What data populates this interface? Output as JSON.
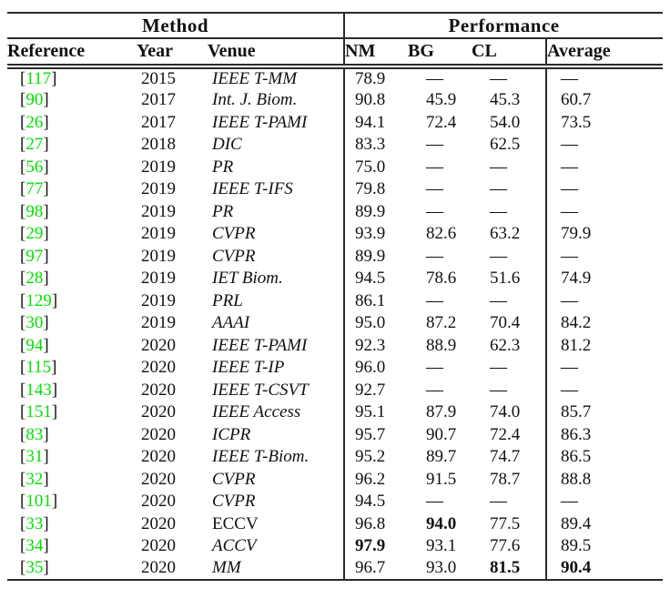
{
  "colors": {
    "citation_green": "#00e000",
    "rule_color": "#2a2a2a",
    "text_color": "#111111"
  },
  "table": {
    "group_headers": [
      {
        "label": "Method"
      },
      {
        "label": "Performance"
      }
    ],
    "columns": [
      {
        "label": "Reference"
      },
      {
        "label": "Year"
      },
      {
        "label": "Venue"
      },
      {
        "label": "NM"
      },
      {
        "label": "BG"
      },
      {
        "label": "CL"
      },
      {
        "label": "Average"
      }
    ],
    "ref_open": "[",
    "ref_close": "]",
    "dash": "—",
    "rows": [
      {
        "ref": "117",
        "year": "2015",
        "venue": "IEEE T-MM",
        "venue_italic": true,
        "nm": "78.9",
        "bg": "—",
        "cl": "—",
        "avg": "—",
        "bold": []
      },
      {
        "ref": "90",
        "year": "2017",
        "venue": "Int. J. Biom.",
        "venue_italic": true,
        "nm": "90.8",
        "bg": "45.9",
        "cl": "45.3",
        "avg": "60.7",
        "bold": []
      },
      {
        "ref": "26",
        "year": "2017",
        "venue": "IEEE T-PAMI",
        "venue_italic": true,
        "nm": "94.1",
        "bg": "72.4",
        "cl": "54.0",
        "avg": "73.5",
        "bold": []
      },
      {
        "ref": "27",
        "year": "2018",
        "venue": "DIC",
        "venue_italic": true,
        "nm": "83.3",
        "bg": "—",
        "cl": "62.5",
        "avg": "—",
        "bold": []
      },
      {
        "ref": "56",
        "year": "2019",
        "venue": "PR",
        "venue_italic": true,
        "nm": "75.0",
        "bg": "—",
        "cl": "—",
        "avg": "—",
        "bold": []
      },
      {
        "ref": "77",
        "year": "2019",
        "venue": "IEEE T-IFS",
        "venue_italic": true,
        "nm": "79.8",
        "bg": "—",
        "cl": "—",
        "avg": "—",
        "bold": []
      },
      {
        "ref": "98",
        "year": "2019",
        "venue": "PR",
        "venue_italic": true,
        "nm": "89.9",
        "bg": "—",
        "cl": "—",
        "avg": "—",
        "bold": []
      },
      {
        "ref": "29",
        "year": "2019",
        "venue": "CVPR",
        "venue_italic": true,
        "nm": "93.9",
        "bg": "82.6",
        "cl": "63.2",
        "avg": "79.9",
        "bold": []
      },
      {
        "ref": "97",
        "year": "2019",
        "venue": "CVPR",
        "venue_italic": true,
        "nm": "89.9",
        "bg": "—",
        "cl": "—",
        "avg": "—",
        "bold": []
      },
      {
        "ref": "28",
        "year": "2019",
        "venue": "IET Biom.",
        "venue_italic": true,
        "nm": "94.5",
        "bg": "78.6",
        "cl": "51.6",
        "avg": "74.9",
        "bold": []
      },
      {
        "ref": "129",
        "year": "2019",
        "venue": "PRL",
        "venue_italic": true,
        "nm": "86.1",
        "bg": "—",
        "cl": "—",
        "avg": "—",
        "bold": []
      },
      {
        "ref": "30",
        "year": "2019",
        "venue": "AAAI",
        "venue_italic": true,
        "nm": "95.0",
        "bg": "87.2",
        "cl": "70.4",
        "avg": "84.2",
        "bold": []
      },
      {
        "ref": "94",
        "year": "2020",
        "venue": "IEEE T-PAMI",
        "venue_italic": true,
        "nm": "92.3",
        "bg": "88.9",
        "cl": "62.3",
        "avg": "81.2",
        "bold": []
      },
      {
        "ref": "115",
        "year": "2020",
        "venue": "IEEE T-IP",
        "venue_italic": true,
        "nm": "96.0",
        "bg": "—",
        "cl": "—",
        "avg": "—",
        "bold": []
      },
      {
        "ref": "143",
        "year": "2020",
        "venue": "IEEE T-CSVT",
        "venue_italic": true,
        "nm": "92.7",
        "bg": "—",
        "cl": "—",
        "avg": "—",
        "bold": []
      },
      {
        "ref": "151",
        "year": "2020",
        "venue": "IEEE Access",
        "venue_italic": true,
        "nm": "95.1",
        "bg": "87.9",
        "cl": "74.0",
        "avg": "85.7",
        "bold": []
      },
      {
        "ref": "83",
        "year": "2020",
        "venue": "ICPR",
        "venue_italic": true,
        "nm": "95.7",
        "bg": "90.7",
        "cl": "72.4",
        "avg": "86.3",
        "bold": []
      },
      {
        "ref": "31",
        "year": "2020",
        "venue": "IEEE T-Biom.",
        "venue_italic": true,
        "nm": "95.2",
        "bg": "89.7",
        "cl": "74.7",
        "avg": "86.5",
        "bold": []
      },
      {
        "ref": "32",
        "year": "2020",
        "venue": "CVPR",
        "venue_italic": true,
        "nm": "96.2",
        "bg": "91.5",
        "cl": "78.7",
        "avg": "88.8",
        "bold": []
      },
      {
        "ref": "101",
        "year": "2020",
        "venue": "CVPR",
        "venue_italic": true,
        "nm": "94.5",
        "bg": "—",
        "cl": "—",
        "avg": "—",
        "bold": []
      },
      {
        "ref": "33",
        "year": "2020",
        "venue": "ECCV",
        "venue_italic": false,
        "nm": "96.8",
        "bg": "94.0",
        "cl": "77.5",
        "avg": "89.4",
        "bold": [
          "bg"
        ]
      },
      {
        "ref": "34",
        "year": "2020",
        "venue": "ACCV",
        "venue_italic": true,
        "nm": "97.9",
        "bg": "93.1",
        "cl": "77.6",
        "avg": "89.5",
        "bold": [
          "nm"
        ]
      },
      {
        "ref": "35",
        "year": "2020",
        "venue": "MM",
        "venue_italic": true,
        "nm": "96.7",
        "bg": "93.0",
        "cl": "81.5",
        "avg": "90.4",
        "bold": [
          "cl",
          "avg"
        ]
      }
    ]
  }
}
